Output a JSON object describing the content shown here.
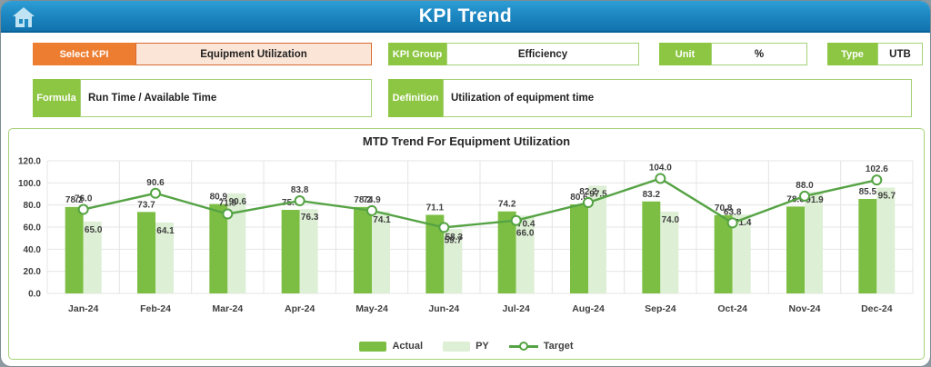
{
  "header": {
    "title": "KPI Trend"
  },
  "fields": {
    "select_kpi": {
      "label": "Select KPI",
      "value": "Equipment Utilization"
    },
    "kpi_group": {
      "label": "KPI Group",
      "value": "Efficiency"
    },
    "unit": {
      "label": "Unit",
      "value": "%"
    },
    "type": {
      "label": "Type",
      "value": "UTB"
    },
    "formula": {
      "label": "Formula",
      "value": "Run Time / Available Time"
    },
    "definition": {
      "label": "Definition",
      "value": "Utilization of equipment time"
    }
  },
  "colors": {
    "actual_bar": "#7CBE43",
    "py_bar": "#DDEFD5",
    "target_line": "#55A344",
    "gridline": "#e4e4e4",
    "label_text": "#3f3f3f",
    "accent_orange": "#ED7D31",
    "accent_green": "#8DC642"
  },
  "chart_data": {
    "type": "bar",
    "subtype": "grouped bars with line overlay",
    "title": "MTD Trend For Equipment Utilization",
    "categories": [
      "Jan-24",
      "Feb-24",
      "Mar-24",
      "Apr-24",
      "May-24",
      "Jun-24",
      "Jul-24",
      "Aug-24",
      "Sep-24",
      "Oct-24",
      "Nov-24",
      "Dec-24"
    ],
    "series": [
      {
        "name": "Actual",
        "type": "bar",
        "values": [
          78.2,
          73.7,
          80.9,
          75.6,
          78.2,
          71.1,
          74.2,
          80.6,
          83.2,
          70.8,
          78.6,
          85.5
        ]
      },
      {
        "name": "PY",
        "type": "bar",
        "values": [
          65.0,
          64.1,
          90.6,
          76.3,
          74.1,
          58.3,
          70.4,
          97.5,
          74.0,
          71.4,
          91.9,
          95.7
        ]
      },
      {
        "name": "Target",
        "type": "line",
        "values": [
          76.0,
          90.6,
          71.9,
          83.8,
          74.9,
          59.7,
          66.0,
          82.2,
          104.0,
          63.8,
          88.0,
          102.6
        ]
      }
    ],
    "target_label_side": [
      "above",
      "above",
      "above",
      "above",
      "above",
      "below",
      "below",
      "above",
      "above",
      "above",
      "above",
      "above"
    ],
    "xlabel": "",
    "ylabel": "",
    "ylim": [
      0,
      120
    ],
    "yticks": [
      "120.0",
      "100.0",
      "80.0",
      "60.0",
      "40.0",
      "20.0",
      "0.0"
    ],
    "grid": true,
    "legend_position": "bottom",
    "legend": [
      "Actual",
      "PY",
      "Target"
    ]
  }
}
